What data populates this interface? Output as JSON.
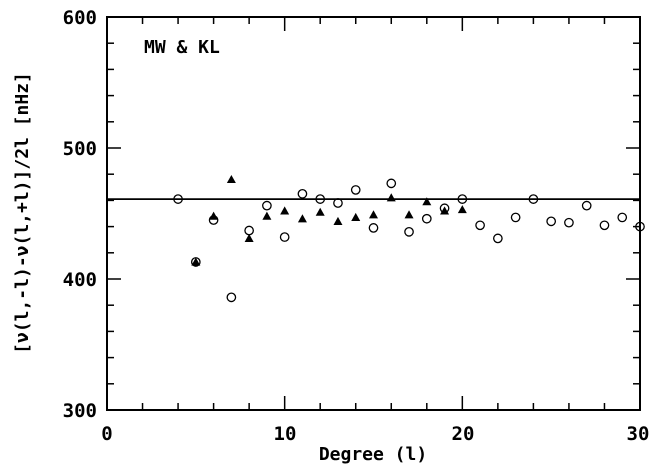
{
  "chart_data": {
    "type": "scatter",
    "xlabel": "Degree (l)",
    "ylabel": "[ν(l,-l)-ν(l,+l)]/2l [nHz]",
    "annotation": "MW & KL",
    "xlim": [
      0,
      30
    ],
    "ylim": [
      300,
      600
    ],
    "x_ticks": [
      "0",
      "10",
      "20",
      "30"
    ],
    "y_ticks": [
      "300",
      "400",
      "500",
      "600"
    ],
    "grid": false,
    "reference_line": {
      "y": 461
    },
    "series": [
      {
        "marker": "circle",
        "points": [
          [
            4,
            461
          ],
          [
            5,
            413
          ],
          [
            6,
            445
          ],
          [
            7,
            386
          ],
          [
            8,
            437
          ],
          [
            9,
            456
          ],
          [
            10,
            432
          ],
          [
            11,
            465
          ],
          [
            12,
            461
          ],
          [
            13,
            458
          ],
          [
            14,
            468
          ],
          [
            15,
            439
          ],
          [
            16,
            473
          ],
          [
            17,
            436
          ],
          [
            18,
            446
          ],
          [
            19,
            454
          ],
          [
            20,
            461
          ],
          [
            21,
            441
          ],
          [
            22,
            431
          ],
          [
            23,
            447
          ],
          [
            24,
            461
          ],
          [
            25,
            444
          ],
          [
            26,
            443
          ],
          [
            27,
            456
          ],
          [
            28,
            441
          ],
          [
            29,
            447
          ],
          [
            30,
            440
          ]
        ]
      },
      {
        "marker": "triangle",
        "points": [
          [
            5,
            413
          ],
          [
            6,
            448
          ],
          [
            7,
            476
          ],
          [
            8,
            431
          ],
          [
            9,
            448
          ],
          [
            10,
            452
          ],
          [
            11,
            446
          ],
          [
            12,
            451
          ],
          [
            13,
            444
          ],
          [
            14,
            447
          ],
          [
            15,
            449
          ],
          [
            16,
            462
          ],
          [
            17,
            449
          ],
          [
            18,
            459
          ],
          [
            19,
            452
          ],
          [
            20,
            453
          ]
        ]
      }
    ]
  }
}
